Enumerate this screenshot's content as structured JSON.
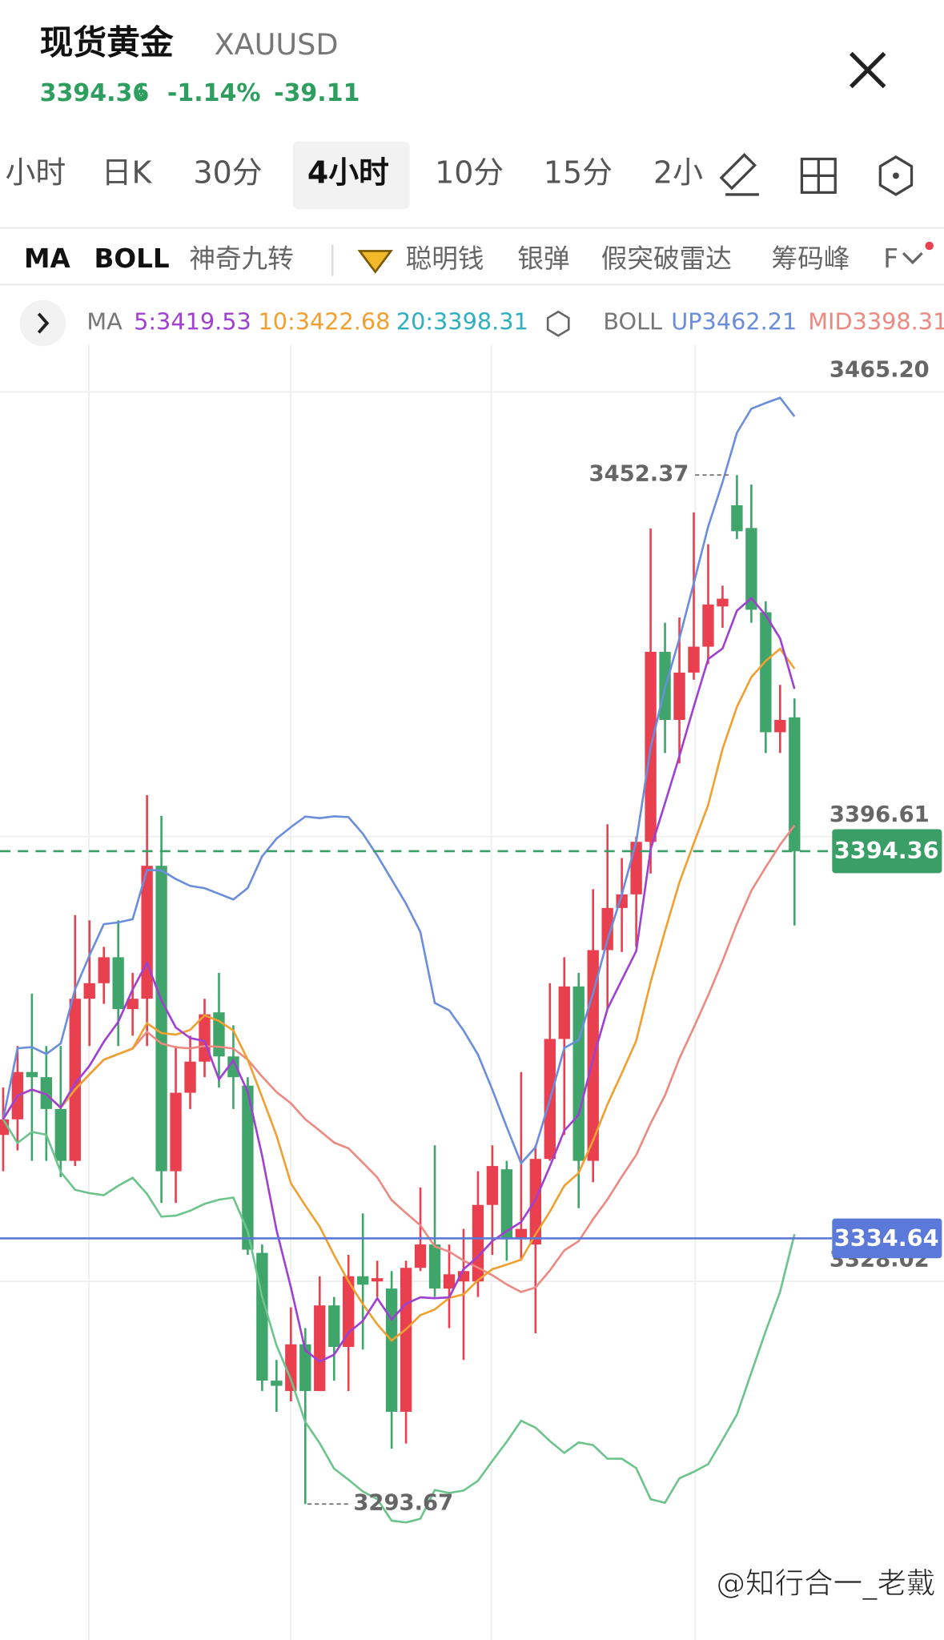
{
  "header": {
    "title": "现货黄金",
    "symbol": "XAUUSD",
    "price": 3394.36,
    "change_pct": "-1.14%",
    "change": -39.11
  },
  "tabs": [
    "小时",
    "日K",
    "30分",
    "4小时",
    "10分",
    "15分",
    "2小"
  ],
  "indicators": [
    "MA",
    "BOLL",
    "神奇九转",
    "聪明钱",
    "银弹",
    "假突破雷达",
    "筹码峰",
    "F"
  ],
  "legend": {
    "ma_label": "MA",
    "ma5": "5:3419.53",
    "ma10": "10:3422.68",
    "ma20": "20:3398.31",
    "boll_label": "BOLL",
    "up": "UP3462.21",
    "mid": "MID3398.31"
  },
  "watermark": "@知行合一_老戴",
  "chart_data": {
    "type": "candlestick",
    "ylim": [
      3272.7,
      3472.4
    ],
    "yticks": [
      {
        "value": 3465.2,
        "label": "3465.20"
      },
      3396.61,
      3328.02
    ],
    "grid": true,
    "up_color": "#e8404f",
    "down_color": "#3fa56a",
    "last_price": 3394.36,
    "level_line": 3334.64,
    "high_label": 3452.37,
    "low_label": 3293.67,
    "ma5_color": "#a040d0",
    "ma10_color": "#f0a030",
    "mid_color": "#ec8a82",
    "up_band_color": "#6a8edc",
    "low_band_color": "#6cc48c",
    "open": [
      3350.6,
      3353.0,
      3360.3,
      3359.5,
      3354.6,
      3346.6,
      3371.6,
      3374.0,
      3378.0,
      3370.0,
      3371.6,
      3392.1,
      3345.0,
      3357.1,
      3361.9,
      3369.5,
      3362.7,
      3358.2,
      3332.4,
      3312.7,
      3311.1,
      3318.3,
      3311.1,
      3324.3,
      3317.9,
      3328.8,
      3328.0,
      3326.9,
      3307.9,
      3330.1,
      3333.7,
      3326.9,
      3328.0,
      3328.0,
      3339.8,
      3345.3,
      3334.5,
      3333.7,
      3346.9,
      3365.4,
      3373.5,
      3346.6,
      3379.1,
      3385.6,
      3387.7,
      3395.8,
      3425.1,
      3414.6,
      3421.9,
      3425.9,
      3432.1,
      3447.7,
      3444.2,
      3431.2,
      3412.7,
      3415.0
    ],
    "high": [
      3357.9,
      3364.3,
      3372.4,
      3364.3,
      3364.3,
      3384.5,
      3383.7,
      3379.6,
      3383.7,
      3375.6,
      3403.0,
      3399.8,
      3364.3,
      3365.9,
      3371.6,
      3375.6,
      3367.5,
      3359.5,
      3333.7,
      3315.9,
      3324.0,
      3320.8,
      3328.8,
      3325.6,
      3332.1,
      3338.5,
      3331.2,
      3329.6,
      3331.2,
      3342.5,
      3349.0,
      3333.7,
      3336.1,
      3345.0,
      3349.0,
      3346.6,
      3360.3,
      3349.0,
      3374.0,
      3378.0,
      3375.6,
      3388.5,
      3398.5,
      3393.3,
      3396.6,
      3444.1,
      3429.6,
      3430.4,
      3446.6,
      3441.7,
      3435.3,
      3452.37,
      3450.9,
      3432.9,
      3420.0,
      3417.9
    ],
    "low": [
      3345.0,
      3348.2,
      3346.6,
      3346.6,
      3344.1,
      3345.8,
      3364.3,
      3370.8,
      3364.3,
      3365.9,
      3364.3,
      3340.1,
      3340.1,
      3354.6,
      3359.5,
      3357.9,
      3354.6,
      3332.1,
      3311.1,
      3307.9,
      3309.5,
      3293.67,
      3311.1,
      3312.7,
      3311.1,
      3317.5,
      3325.6,
      3302.2,
      3303.0,
      3329.6,
      3325.6,
      3320.8,
      3315.9,
      3325.6,
      3332.1,
      3331.2,
      3331.2,
      3320.0,
      3346.6,
      3350.6,
      3339.3,
      3343.3,
      3370.0,
      3378.8,
      3379.6,
      3390.9,
      3409.5,
      3407.9,
      3420.8,
      3423.2,
      3428.8,
      3442.5,
      3429.6,
      3409.5,
      3409.5,
      3382.9
    ],
    "close": [
      3353.0,
      3360.3,
      3359.5,
      3354.6,
      3346.6,
      3371.6,
      3374.0,
      3378.0,
      3370.0,
      3371.6,
      3392.1,
      3345.0,
      3357.1,
      3361.9,
      3369.2,
      3362.7,
      3359.5,
      3332.9,
      3312.7,
      3311.9,
      3318.3,
      3311.1,
      3324.3,
      3317.9,
      3328.8,
      3327.5,
      3328.5,
      3307.9,
      3330.1,
      3333.7,
      3326.9,
      3329.1,
      3329.6,
      3339.8,
      3345.8,
      3334.5,
      3336.1,
      3346.9,
      3365.4,
      3373.5,
      3346.6,
      3379.1,
      3385.6,
      3387.7,
      3395.8,
      3425.1,
      3414.6,
      3421.9,
      3425.9,
      3432.4,
      3433.3,
      3443.7,
      3431.6,
      3412.7,
      3414.6,
      3394.36
    ]
  }
}
